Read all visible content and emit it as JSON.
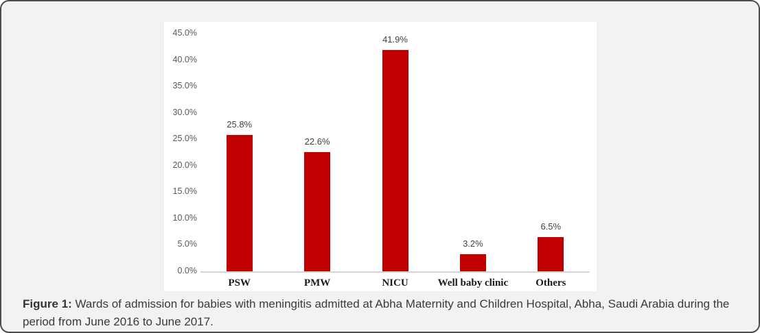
{
  "caption": {
    "label": "Figure 1:",
    "text": " Wards of admission for babies with meningitis admitted at Abha Maternity and Children Hospital, Abha, Saudi Arabia during the period from June 2016 to June 2017."
  },
  "chart_data": {
    "type": "bar",
    "categories": [
      "PSW",
      "PMW",
      "NICU",
      "Well baby clinic",
      "Others"
    ],
    "values": [
      25.8,
      22.6,
      41.9,
      3.2,
      6.5
    ],
    "value_labels": [
      "25.8%",
      "22.6%",
      "41.9%",
      "3.2%",
      "6.5%"
    ],
    "ytick_values": [
      45,
      40,
      35,
      30,
      25,
      20,
      15,
      10,
      5,
      0
    ],
    "ytick_labels": [
      "45.0%",
      "40.0%",
      "35.0%",
      "30.0%",
      "25.0%",
      "20.0%",
      "15.0%",
      "10.0%",
      "5.0%",
      "0.0%"
    ],
    "ylim": [
      0,
      45
    ],
    "xlabel": "",
    "ylabel": "",
    "grid": false,
    "legend": false,
    "bar_color": "#c00000",
    "axis_line_color": "#d4d4d4",
    "panel_background": "#ffffff",
    "card_background": "#f2f2f2"
  }
}
